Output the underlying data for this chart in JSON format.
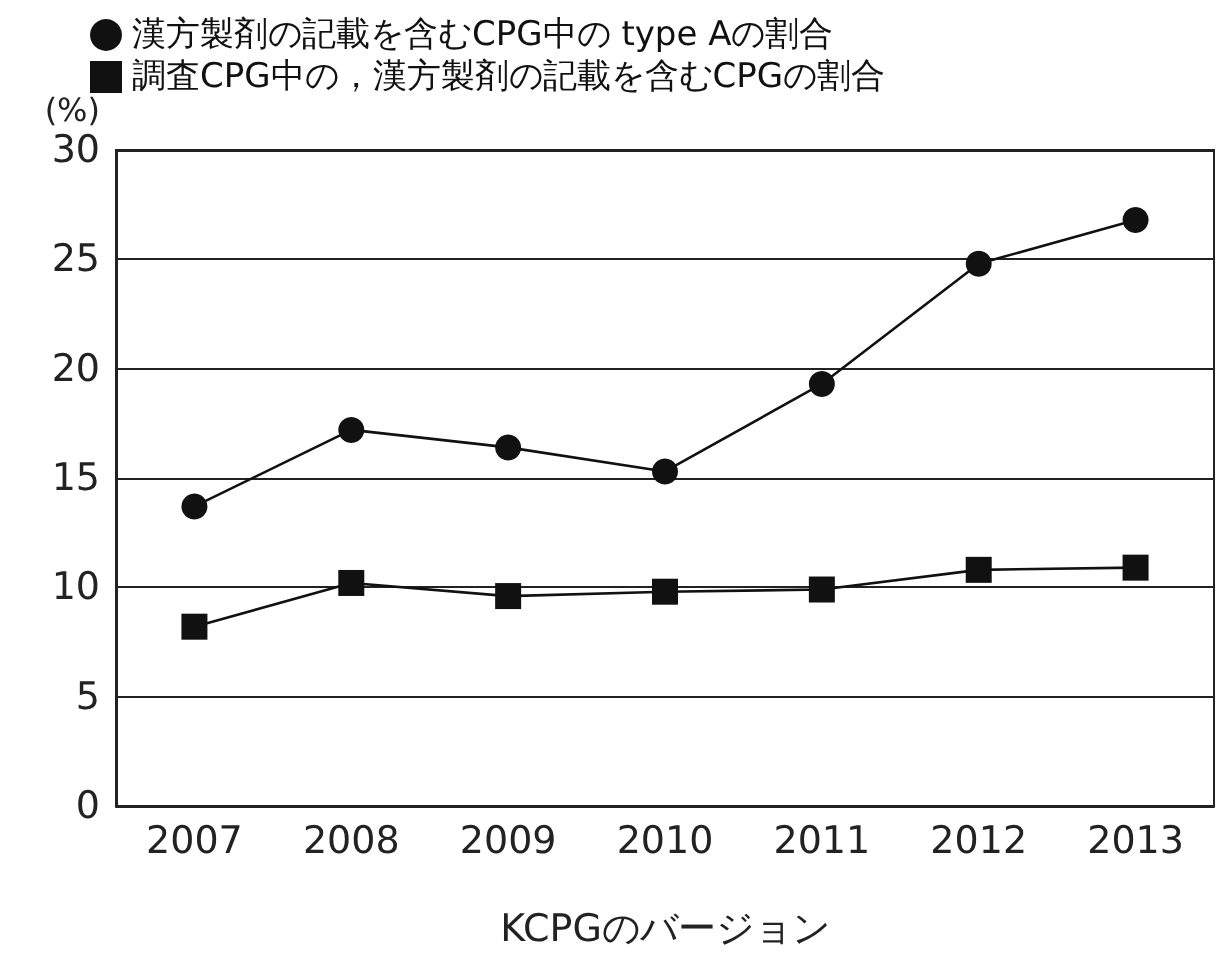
{
  "chart_data": {
    "type": "line",
    "ylabel": "(%)",
    "xlabel": "KCPGのバージョン",
    "categories": [
      "2007",
      "2008",
      "2009",
      "2010",
      "2011",
      "2012",
      "2013"
    ],
    "series": [
      {
        "name": "漢方製剤の記載を含むCPG中の type Aの割合",
        "color": "#111111",
        "marker": "circle",
        "values": [
          13.7,
          17.2,
          16.4,
          15.3,
          19.3,
          24.8,
          26.8
        ]
      },
      {
        "name": "調査CPG中の，漢方製剤の記載を含むCPGの割合",
        "color": "#111111",
        "marker": "square",
        "values": [
          8.2,
          10.2,
          9.6,
          9.8,
          9.9,
          10.8,
          10.9
        ]
      }
    ],
    "ylim": [
      0,
      30
    ],
    "yticks": [
      0,
      5,
      10,
      15,
      20,
      25,
      30
    ],
    "grid": "y",
    "legend": "top",
    "line_style": "solid"
  }
}
